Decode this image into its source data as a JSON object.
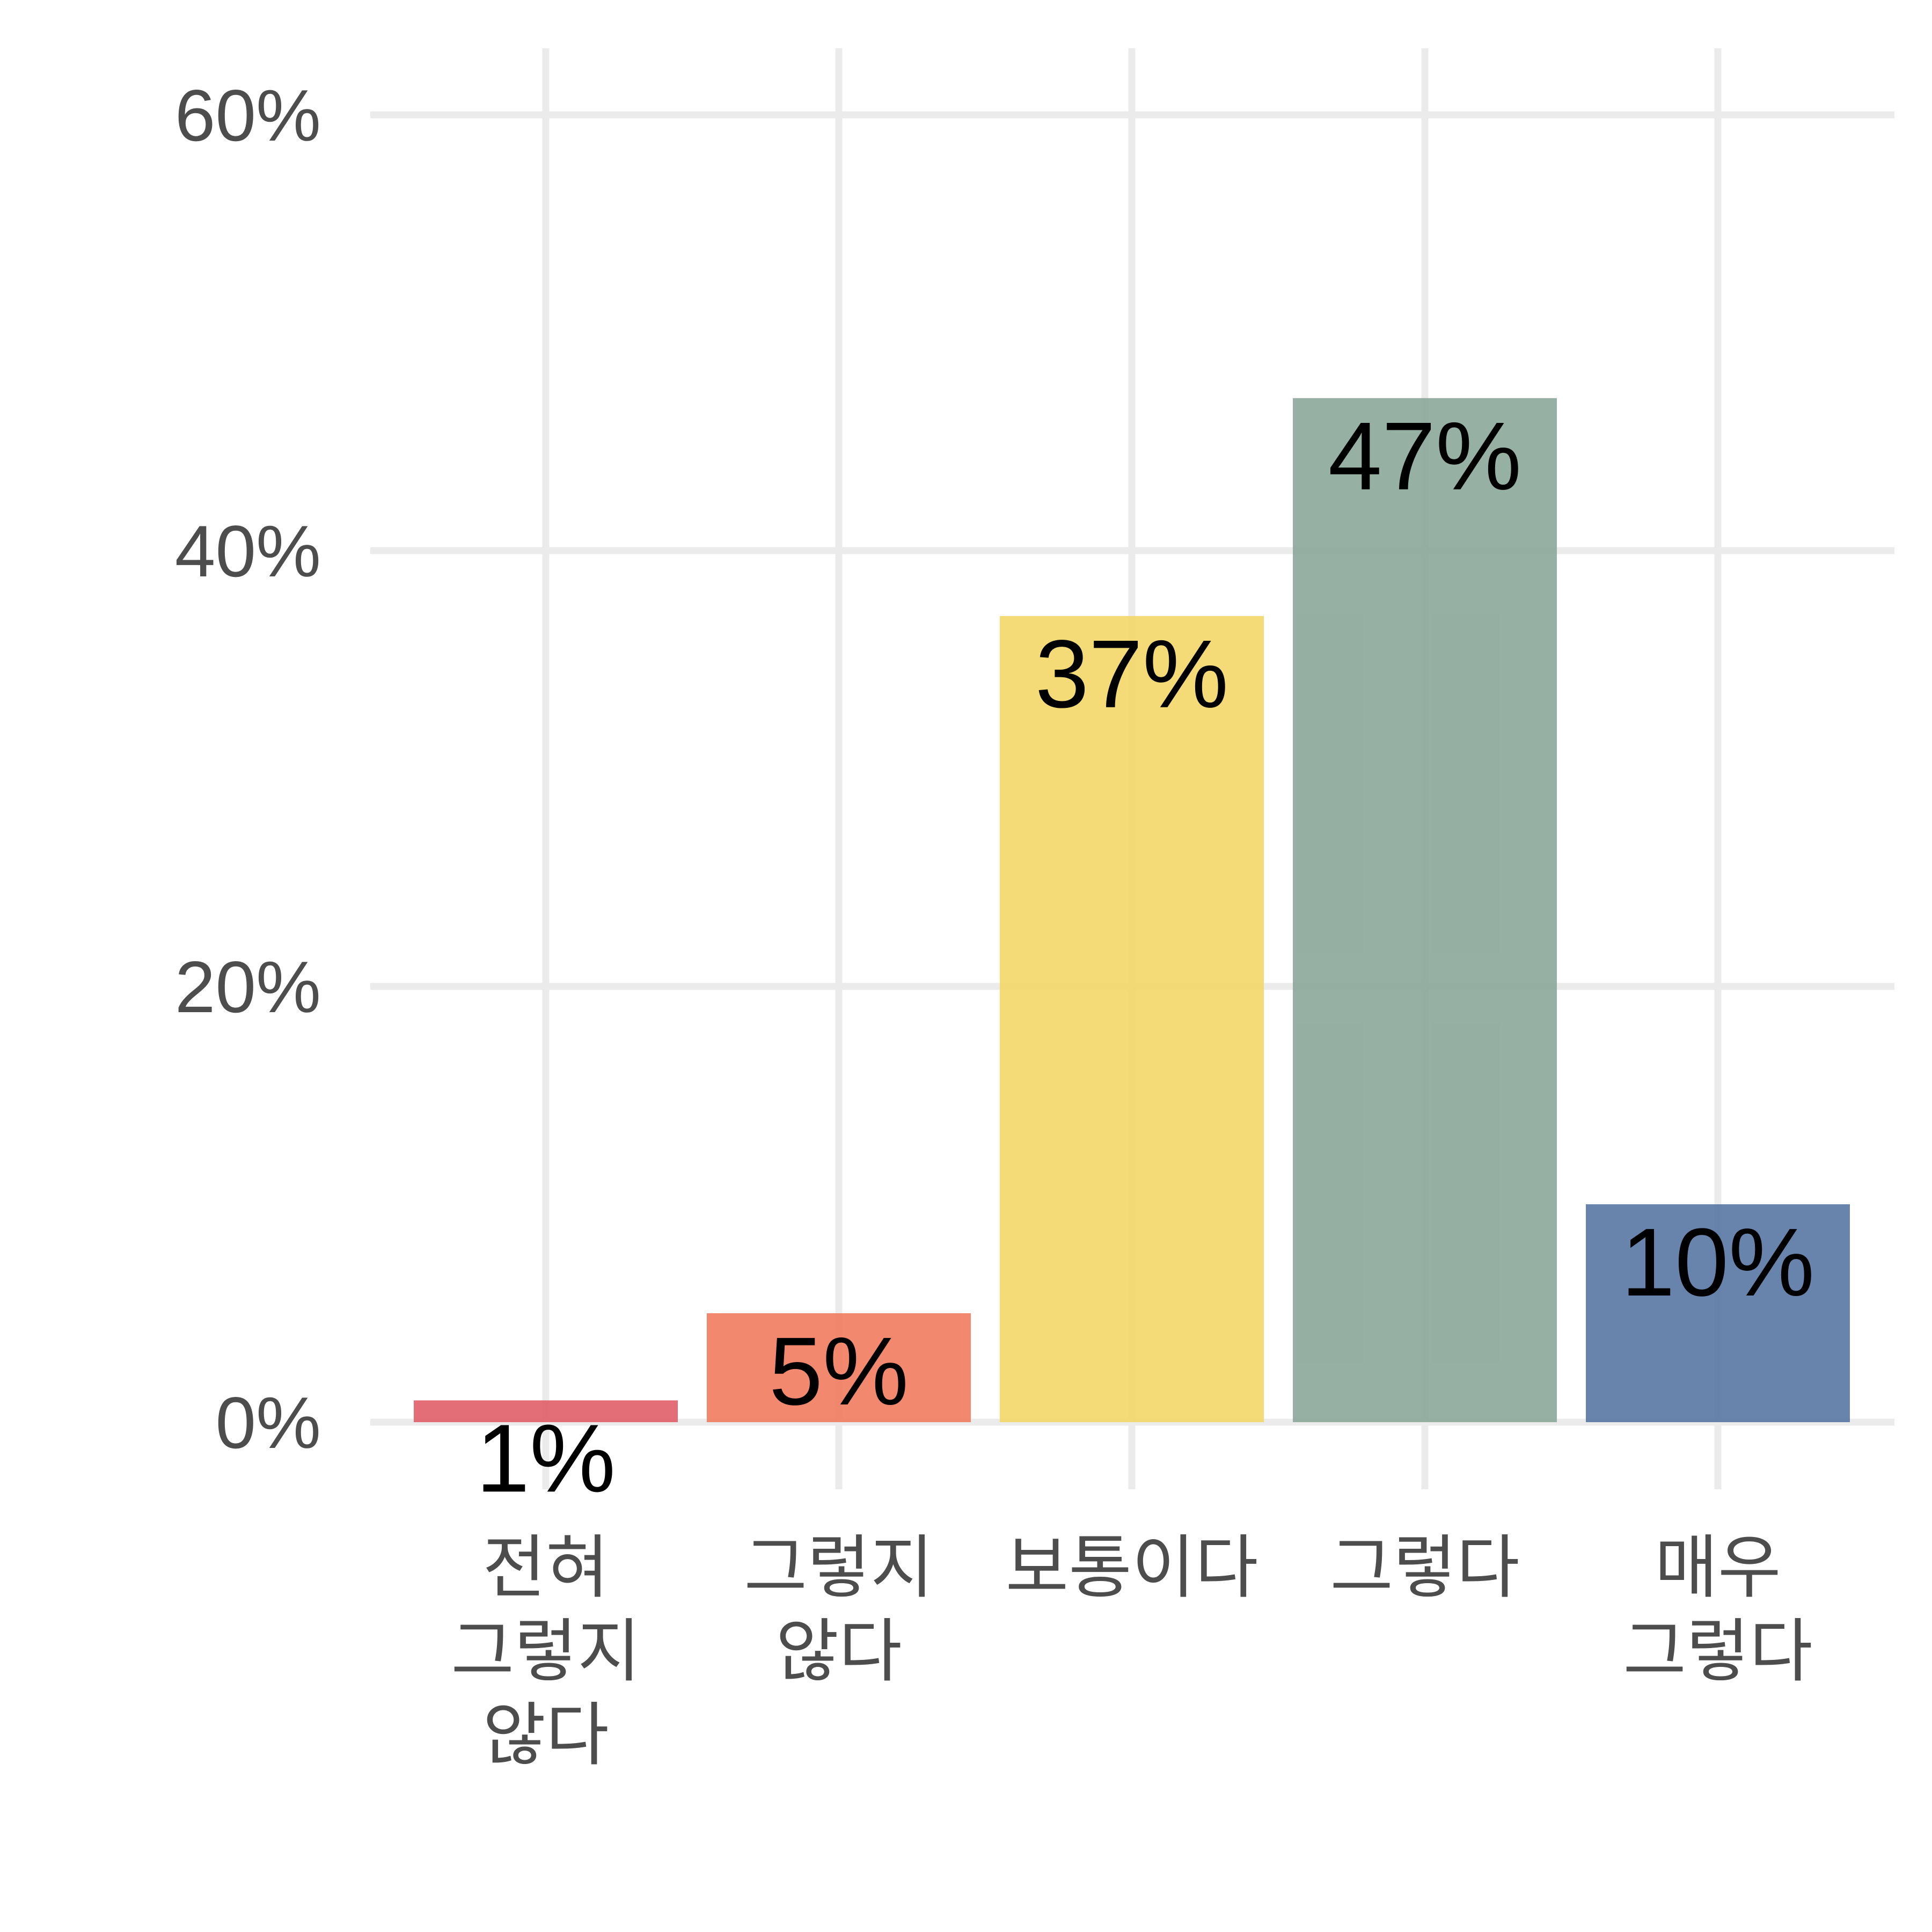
{
  "chart_data": {
    "type": "bar",
    "title": "",
    "xlabel": "",
    "ylabel": "",
    "categories": [
      [
        "전혀",
        "그렇지",
        "않다"
      ],
      [
        "그렇지",
        "않다"
      ],
      [
        "보통이다"
      ],
      [
        "그렇다"
      ],
      [
        "매우",
        "그렇다"
      ]
    ],
    "values": [
      1,
      5,
      37,
      47,
      10
    ],
    "data_labels": [
      "1%",
      "5%",
      "37%",
      "47%",
      "10%"
    ],
    "colors": [
      "#e05a64",
      "#f0785a",
      "#f2d664",
      "#87a596",
      "#5473a0"
    ],
    "ylim": [
      0,
      63
    ],
    "yticks": [
      0,
      20,
      40,
      60
    ],
    "ytick_labels": [
      "0%",
      "20%",
      "40%",
      "60%"
    ],
    "grid": true,
    "legend": "none"
  }
}
